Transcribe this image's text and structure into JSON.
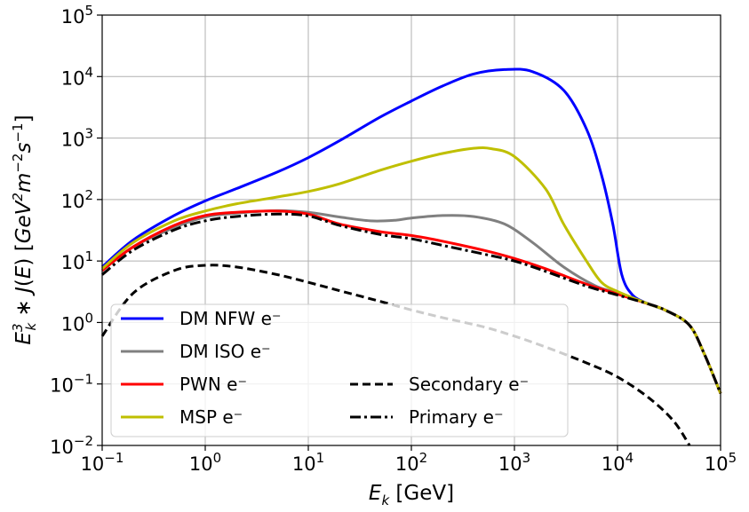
{
  "chart_data": {
    "type": "line",
    "xscale": "log",
    "yscale": "log",
    "xlim": [
      0.1,
      100000
    ],
    "ylim": [
      0.01,
      100000
    ],
    "grid": true,
    "xlabel": "E_k [GeV]",
    "ylabel": "E_k^3 * J(E) [GeV^2 m^-2 s^-1]",
    "legend_position": "lower-left",
    "x_ticks": [
      {
        "base": "10",
        "exp": "−1",
        "value": 0.1
      },
      {
        "base": "10",
        "exp": "0",
        "value": 1
      },
      {
        "base": "10",
        "exp": "1",
        "value": 10
      },
      {
        "base": "10",
        "exp": "2",
        "value": 100
      },
      {
        "base": "10",
        "exp": "3",
        "value": 1000
      },
      {
        "base": "10",
        "exp": "4",
        "value": 10000
      },
      {
        "base": "10",
        "exp": "5",
        "value": 100000
      }
    ],
    "y_ticks": [
      {
        "base": "10",
        "exp": "−2",
        "value": 0.01
      },
      {
        "base": "10",
        "exp": "−1",
        "value": 0.1
      },
      {
        "base": "10",
        "exp": "0",
        "value": 1
      },
      {
        "base": "10",
        "exp": "1",
        "value": 10
      },
      {
        "base": "10",
        "exp": "2",
        "value": 100
      },
      {
        "base": "10",
        "exp": "3",
        "value": 1000
      },
      {
        "base": "10",
        "exp": "4",
        "value": 10000
      },
      {
        "base": "10",
        "exp": "5",
        "value": 100000
      }
    ],
    "series": [
      {
        "name": "DM NFW e⁻",
        "color": "#0000ff",
        "dash": "solid",
        "legend_column": 0,
        "points": [
          [
            0.1,
            8
          ],
          [
            0.2,
            22
          ],
          [
            0.5,
            55
          ],
          [
            1,
            95
          ],
          [
            2,
            150
          ],
          [
            5,
            280
          ],
          [
            10,
            480
          ],
          [
            20,
            900
          ],
          [
            50,
            2200
          ],
          [
            100,
            4000
          ],
          [
            200,
            7000
          ],
          [
            400,
            11000
          ],
          [
            800,
            13000
          ],
          [
            1500,
            12000
          ],
          [
            3000,
            6000
          ],
          [
            5000,
            1400
          ],
          [
            7000,
            250
          ],
          [
            9000,
            40
          ],
          [
            11000,
            6
          ],
          [
            14000,
            2.8
          ],
          [
            20000,
            2.0
          ],
          [
            30000,
            1.55
          ],
          [
            50000,
            0.9
          ],
          [
            70000,
            0.3
          ],
          [
            100000,
            0.07
          ]
        ]
      },
      {
        "name": "DM ISO e⁻",
        "color": "#808080",
        "dash": "solid",
        "legend_column": 0,
        "points": [
          [
            0.1,
            7
          ],
          [
            0.2,
            17
          ],
          [
            0.5,
            35
          ],
          [
            1,
            52
          ],
          [
            2,
            60
          ],
          [
            5,
            66
          ],
          [
            10,
            62
          ],
          [
            20,
            52
          ],
          [
            40,
            45
          ],
          [
            70,
            46
          ],
          [
            100,
            50
          ],
          [
            200,
            55
          ],
          [
            400,
            53
          ],
          [
            800,
            40
          ],
          [
            1500,
            20
          ],
          [
            3000,
            8
          ],
          [
            6000,
            4
          ],
          [
            10000,
            3.0
          ],
          [
            20000,
            2.0
          ],
          [
            30000,
            1.55
          ],
          [
            50000,
            0.9
          ],
          [
            70000,
            0.3
          ],
          [
            100000,
            0.07
          ]
        ]
      },
      {
        "name": "PWN e⁻",
        "color": "#ff0000",
        "dash": "solid",
        "legend_column": 0,
        "points": [
          [
            0.1,
            7
          ],
          [
            0.2,
            17
          ],
          [
            0.5,
            38
          ],
          [
            1,
            55
          ],
          [
            2,
            62
          ],
          [
            5,
            65
          ],
          [
            10,
            58
          ],
          [
            20,
            40
          ],
          [
            50,
            30
          ],
          [
            100,
            26
          ],
          [
            200,
            21
          ],
          [
            500,
            15
          ],
          [
            1000,
            11
          ],
          [
            2000,
            7.5
          ],
          [
            5000,
            4.2
          ],
          [
            10000,
            2.9
          ],
          [
            20000,
            2.0
          ],
          [
            30000,
            1.55
          ],
          [
            50000,
            0.9
          ],
          [
            70000,
            0.3
          ],
          [
            100000,
            0.07
          ]
        ]
      },
      {
        "name": "MSP e⁻",
        "color": "#bfbf00",
        "dash": "solid",
        "legend_column": 0,
        "points": [
          [
            0.1,
            7.5
          ],
          [
            0.2,
            20
          ],
          [
            0.5,
            45
          ],
          [
            1,
            65
          ],
          [
            2,
            85
          ],
          [
            5,
            110
          ],
          [
            10,
            135
          ],
          [
            20,
            180
          ],
          [
            50,
            300
          ],
          [
            100,
            420
          ],
          [
            200,
            560
          ],
          [
            400,
            680
          ],
          [
            600,
            670
          ],
          [
            1000,
            500
          ],
          [
            2000,
            150
          ],
          [
            3000,
            40
          ],
          [
            5000,
            10
          ],
          [
            7000,
            4.5
          ],
          [
            10000,
            3.2
          ],
          [
            20000,
            2.0
          ],
          [
            30000,
            1.55
          ],
          [
            50000,
            0.9
          ],
          [
            70000,
            0.3
          ],
          [
            100000,
            0.07
          ]
        ]
      },
      {
        "name": "Secondary e⁻",
        "color": "#000000",
        "dash": "dashed",
        "legend_column": 1,
        "points": [
          [
            0.1,
            0.6
          ],
          [
            0.2,
            3
          ],
          [
            0.5,
            7
          ],
          [
            1,
            8.5
          ],
          [
            2,
            8
          ],
          [
            5,
            6
          ],
          [
            10,
            4.5
          ],
          [
            20,
            3.3
          ],
          [
            50,
            2.2
          ],
          [
            100,
            1.6
          ],
          [
            200,
            1.2
          ],
          [
            500,
            0.85
          ],
          [
            1000,
            0.6
          ],
          [
            2000,
            0.4
          ],
          [
            5000,
            0.22
          ],
          [
            10000,
            0.13
          ],
          [
            20000,
            0.06
          ],
          [
            35000,
            0.025
          ],
          [
            50000,
            0.01
          ]
        ]
      },
      {
        "name": "Primary e⁻",
        "color": "#000000",
        "dash": "dashdot",
        "legend_column": 1,
        "points": [
          [
            0.1,
            6
          ],
          [
            0.2,
            15
          ],
          [
            0.5,
            32
          ],
          [
            1,
            45
          ],
          [
            2,
            53
          ],
          [
            5,
            58
          ],
          [
            10,
            54
          ],
          [
            20,
            38
          ],
          [
            50,
            27
          ],
          [
            100,
            23
          ],
          [
            200,
            18
          ],
          [
            500,
            13
          ],
          [
            1000,
            10
          ],
          [
            2000,
            6.8
          ],
          [
            5000,
            3.9
          ],
          [
            10000,
            2.8
          ],
          [
            20000,
            2.0
          ],
          [
            30000,
            1.55
          ],
          [
            50000,
            0.9
          ],
          [
            70000,
            0.3
          ],
          [
            100000,
            0.07
          ]
        ]
      }
    ]
  }
}
